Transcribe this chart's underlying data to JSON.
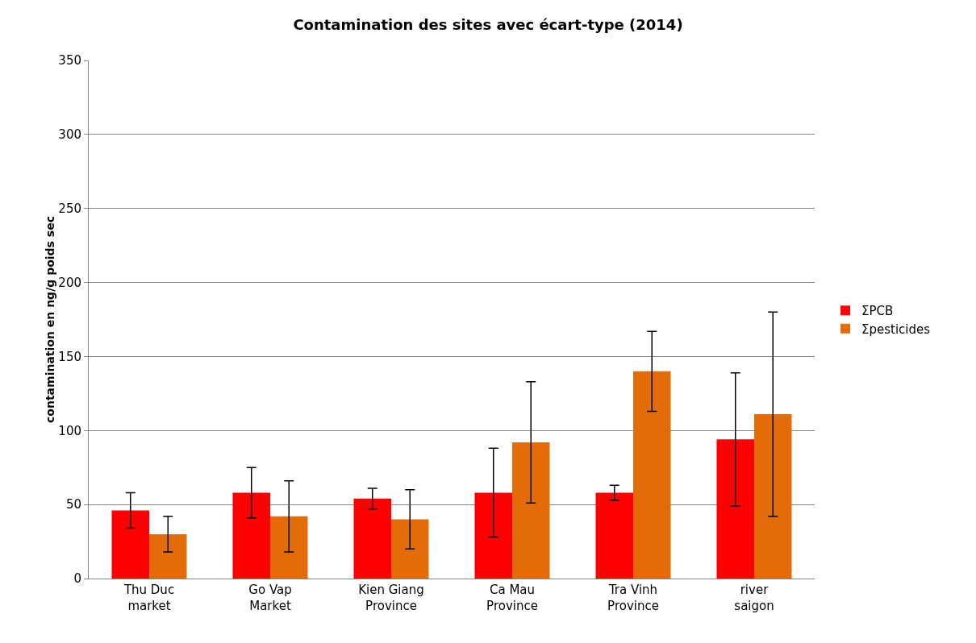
{
  "chart_data": {
    "type": "bar",
    "title": "Contamination des sites avec écart-type (2014)",
    "ylabel": "contamination en ng/g poids sec",
    "categories": [
      "Thu Duc market",
      "Go Vap Market",
      "Kien Giang Province",
      "Ca Mau Province",
      "Tra Vinh Province",
      "river saigon"
    ],
    "series": [
      {
        "name": "ΣPCB",
        "color": "#ff0000",
        "values": [
          46,
          58,
          54,
          58,
          58,
          94
        ],
        "errors": [
          12,
          17,
          7,
          30,
          5,
          45
        ]
      },
      {
        "name": "Σpesticides",
        "color": "#e36c09",
        "values": [
          30,
          42,
          40,
          92,
          140,
          111
        ],
        "errors": [
          12,
          24,
          20,
          41,
          27,
          69
        ]
      }
    ],
    "ylim": [
      0,
      350
    ],
    "yticks": [
      0,
      50,
      100,
      150,
      200,
      250,
      300,
      350
    ],
    "grid": "y",
    "legend": "right"
  }
}
